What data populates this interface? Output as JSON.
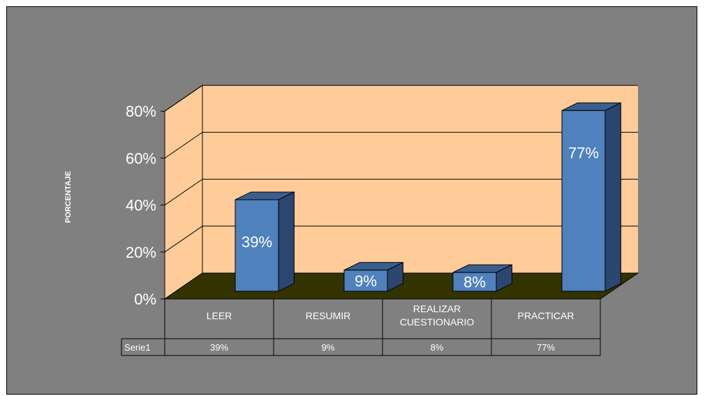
{
  "chart_data": {
    "type": "bar",
    "ylabel": "PORCENTAJE",
    "ylim": [
      0,
      0.8
    ],
    "yticks": [
      "0%",
      "20%",
      "40%",
      "60%",
      "80%"
    ],
    "categories": [
      "LEER",
      "RESUMIR",
      "REALIZAR CUESTIONARIO",
      "PRACTICAR"
    ],
    "series": [
      {
        "name": "Serie1",
        "values": [
          0.39,
          0.09,
          0.08,
          0.77
        ],
        "labels": [
          "39%",
          "9%",
          "8%",
          "77%"
        ]
      }
    ],
    "data_table": true,
    "grid": true,
    "style": "3d-column",
    "colors": {
      "background": "#808080",
      "wall": "#FFCC99",
      "floor": "#333300",
      "bar_front": "#4F81BD",
      "bar_top": "#3A5F8F",
      "bar_side": "#2B4670"
    }
  }
}
